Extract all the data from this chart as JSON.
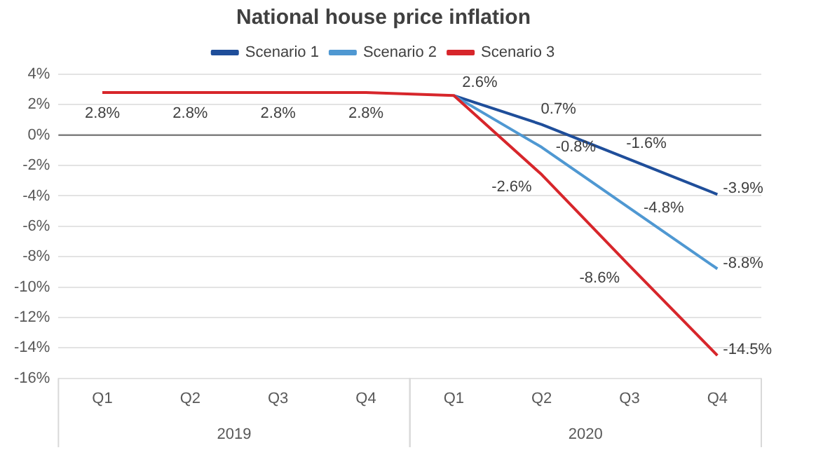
{
  "chart_data": {
    "type": "line",
    "title": "National house price inflation",
    "categories": [
      "Q1",
      "Q2",
      "Q3",
      "Q4",
      "Q1",
      "Q2",
      "Q3",
      "Q4"
    ],
    "annotations": [
      "2019",
      "2020"
    ],
    "series": [
      {
        "name": "Scenario 1",
        "color": "#1f4e9a",
        "values": [
          null,
          null,
          null,
          null,
          2.6,
          0.7,
          -1.6,
          -3.9
        ],
        "value_labels": [
          null,
          null,
          null,
          null,
          null,
          "0.7%",
          "-1.6%",
          "-3.9%"
        ]
      },
      {
        "name": "Scenario 2",
        "color": "#4f98d2",
        "values": [
          null,
          null,
          null,
          null,
          2.6,
          -0.8,
          -4.8,
          -8.8
        ],
        "value_labels": [
          null,
          null,
          null,
          null,
          null,
          "-0.8%",
          "-4.8%",
          "-8.8%"
        ]
      },
      {
        "name": "Scenario 3",
        "color": "#d7262b",
        "values": [
          2.8,
          2.8,
          2.8,
          2.8,
          2.6,
          -2.6,
          -8.6,
          -14.5
        ],
        "value_labels": [
          "2.8%",
          "2.8%",
          "2.8%",
          "2.8%",
          "2.6%",
          "-2.6%",
          "-8.6%",
          "-14.5%"
        ]
      }
    ],
    "ylim": [
      -16,
      4
    ],
    "yticks": [
      {
        "value": -16,
        "label": "-16%"
      },
      {
        "value": -14,
        "label": "-14%"
      },
      {
        "value": -12,
        "label": "-12%"
      },
      {
        "value": -10,
        "label": "-10%"
      },
      {
        "value": -8,
        "label": "-8%"
      },
      {
        "value": -6,
        "label": "-6%"
      },
      {
        "value": -4,
        "label": "-4%"
      },
      {
        "value": -2,
        "label": "-2%"
      },
      {
        "value": 0,
        "label": "0%"
      },
      {
        "value": 2,
        "label": "2%"
      },
      {
        "value": 4,
        "label": "4%"
      }
    ],
    "ref_lines": [
      {
        "axis": "y",
        "value": 0,
        "color": "#7f7f7f"
      }
    ],
    "grid": "y",
    "legend": "top",
    "marker": "none",
    "line_style": "solid"
  }
}
